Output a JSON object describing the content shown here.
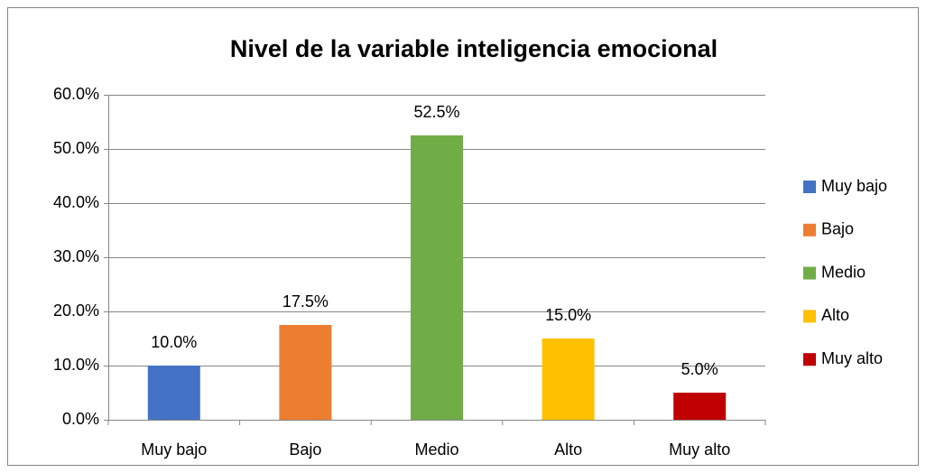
{
  "chart_data": {
    "type": "bar",
    "title": "Nivel de la variable inteligencia emocional",
    "categories": [
      "Muy bajo",
      "Bajo",
      "Medio",
      "Alto",
      "Muy alto"
    ],
    "values": [
      10,
      17.5,
      52.5,
      15,
      5
    ],
    "value_labels": [
      "10.0%",
      "17.5%",
      "52.5%",
      "15.0%",
      "5.0%"
    ],
    "colors": [
      "#4472c4",
      "#ed7d31",
      "#70ad47",
      "#ffc000",
      "#c00000"
    ],
    "ylim": [
      0,
      60
    ],
    "yticks": [
      {
        "value": 0,
        "label": "0.0%"
      },
      {
        "value": 10,
        "label": "10.0%"
      },
      {
        "value": 20,
        "label": "20.0%"
      },
      {
        "value": 30,
        "label": "30.0%"
      },
      {
        "value": 40,
        "label": "40.0%"
      },
      {
        "value": 50,
        "label": "50.0%"
      },
      {
        "value": 60,
        "label": "60.0%"
      }
    ],
    "grid": true,
    "legend": "right"
  }
}
